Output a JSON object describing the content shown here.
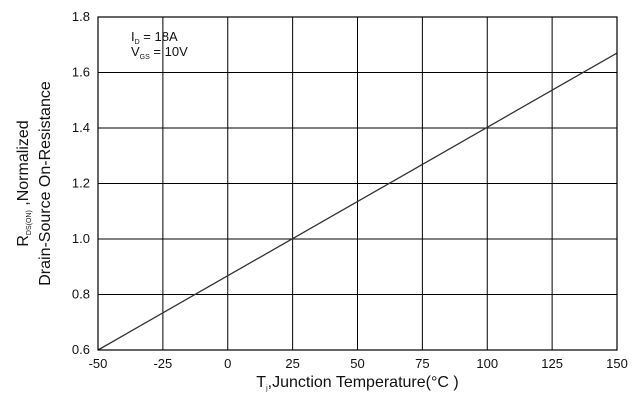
{
  "chart_data": {
    "type": "line",
    "title": "",
    "xlabel": {
      "main": "T",
      "sub": "j",
      "rest": ",Junction Temperature(°C )"
    },
    "ylabel": {
      "line1": {
        "main": "R",
        "sub": "DS(ON)",
        "rest": " ,Normalized"
      },
      "line2": "Drain-Source On-Resistance"
    },
    "xlim": [
      -50,
      150
    ],
    "ylim": [
      0.6,
      1.8
    ],
    "xticks": [
      -50,
      -25,
      0,
      25,
      50,
      75,
      100,
      125,
      150
    ],
    "xtick_labels": [
      "-50",
      "-25",
      "0",
      "25",
      "50",
      "75",
      "100",
      "125",
      "150"
    ],
    "yticks": [
      0.6,
      0.8,
      1.0,
      1.2,
      1.4,
      1.6,
      1.8
    ],
    "ytick_labels": [
      "0.6",
      "0.8",
      "1.0",
      "1.2",
      "1.4",
      "1.6",
      "1.8"
    ],
    "grid": true,
    "series": [
      {
        "x": [
          -50,
          150
        ],
        "y": [
          0.6,
          1.67
        ]
      }
    ],
    "annotations": [
      {
        "main": "I",
        "sub": "D",
        "rest": " = 18A"
      },
      {
        "main": "V",
        "sub": "GS",
        "rest": " = 10V"
      }
    ],
    "colors": {
      "line": "#333333",
      "grid": "#000000",
      "frame": "#000000"
    }
  }
}
